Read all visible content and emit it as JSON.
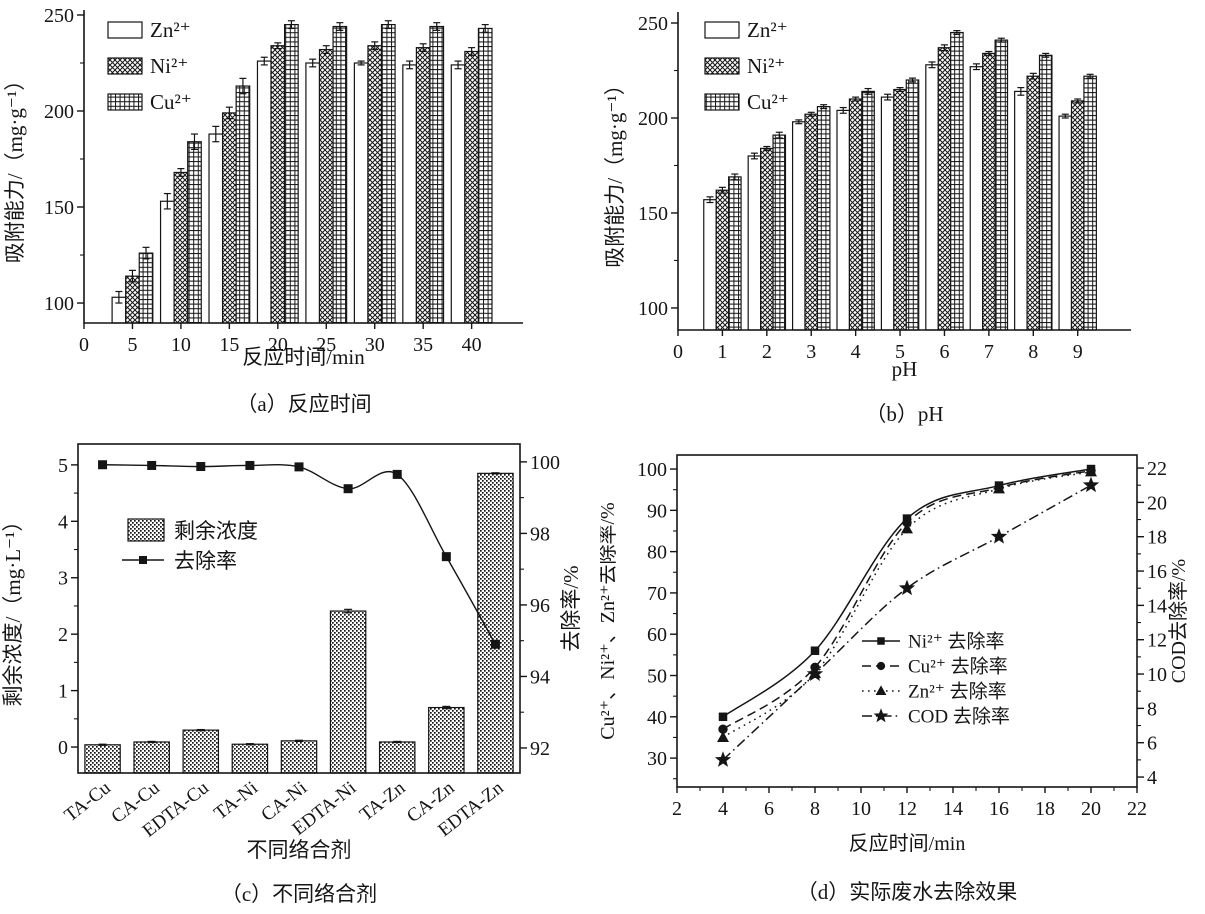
{
  "figure": {
    "background": "#ffffff",
    "ink": "#151515"
  },
  "chart_data": [
    {
      "id": "a",
      "type": "bar",
      "caption": "（a）反应时间",
      "xlabel": "反应时间/min",
      "ylabel": "吸附能力/（mg·g⁻¹）",
      "categories": [
        5,
        10,
        15,
        20,
        25,
        30,
        35,
        40
      ],
      "xlim": [
        0,
        45.3
      ],
      "xticks": [
        0,
        5,
        10,
        15,
        20,
        25,
        30,
        35,
        40
      ],
      "ylim": [
        89.6,
        252.6
      ],
      "yticks": [
        100,
        150,
        200,
        250
      ],
      "yminor": 25,
      "grid": false,
      "legend_position": "top-left",
      "series": [
        {
          "name": "Zn²⁺",
          "pattern": "plain",
          "values": [
            103,
            153,
            188,
            226,
            225,
            225,
            224,
            224
          ],
          "err": [
            3,
            4,
            4,
            2,
            2,
            1,
            2,
            2
          ]
        },
        {
          "name": "Ni²⁺",
          "pattern": "cross",
          "values": [
            114,
            168,
            199,
            234,
            232,
            234,
            233,
            231
          ],
          "err": [
            3,
            2,
            3,
            1.5,
            2,
            2,
            2,
            2
          ]
        },
        {
          "name": "Cu²⁺",
          "pattern": "grid",
          "values": [
            126,
            184,
            213,
            245,
            244,
            245,
            244,
            243
          ],
          "err": [
            3,
            4,
            4,
            2,
            2,
            2,
            2,
            2
          ]
        }
      ]
    },
    {
      "id": "b",
      "type": "bar",
      "caption": "（b）pH",
      "xlabel": "pH",
      "ylabel": "吸附能力/（mg·g⁻¹）",
      "categories": [
        1,
        2,
        3,
        4,
        5,
        6,
        7,
        8,
        9
      ],
      "xlim": [
        0,
        10.2
      ],
      "xticks": [
        0,
        1,
        2,
        3,
        4,
        5,
        6,
        7,
        8,
        9
      ],
      "ylim": [
        88.4,
        255.8
      ],
      "yticks": [
        100,
        150,
        200,
        250
      ],
      "yminor": 25,
      "grid": false,
      "legend_position": "top-left",
      "series": [
        {
          "name": "Zn²⁺",
          "pattern": "plain",
          "values": [
            157,
            180,
            198,
            204,
            211,
            228,
            227,
            214,
            201
          ],
          "err": [
            1.5,
            1.5,
            1,
            1.5,
            1.5,
            1.5,
            1.5,
            2,
            1
          ]
        },
        {
          "name": "Ni²⁺",
          "pattern": "cross",
          "values": [
            162,
            184,
            202,
            210,
            215,
            237,
            234,
            222,
            209
          ],
          "err": [
            1.5,
            1,
            1,
            1,
            1,
            1.5,
            1,
            1.5,
            1
          ]
        },
        {
          "name": "Cu²⁺",
          "pattern": "grid",
          "values": [
            169,
            191,
            206,
            214,
            220,
            245,
            241,
            233,
            222
          ],
          "err": [
            1.5,
            1.5,
            1,
            1.5,
            1,
            1,
            1,
            1,
            1
          ]
        }
      ]
    },
    {
      "id": "c",
      "type": "bar-line",
      "caption": "（c）不同络合剂",
      "xlabel": "不同络合剂",
      "ylabel_left": "剩余浓度/（mg·L⁻¹）",
      "ylabel_right": "去除率/%",
      "categories": [
        "TA-Cu",
        "CA-Cu",
        "EDTA-Cu",
        "TA-Ni",
        "CA-Ni",
        "EDTA-Ni",
        "TA-Zn",
        "CA-Zn",
        "EDTA-Zn"
      ],
      "ylim_left": [
        -0.46,
        5.37
      ],
      "yticks_left": [
        0,
        1,
        2,
        3,
        4,
        5
      ],
      "yminor_left": 0.5,
      "ylim_right": [
        91.3,
        100.5
      ],
      "yticks_right": [
        92,
        94,
        96,
        98,
        100
      ],
      "yminor_right": 1,
      "grid": false,
      "bar_series": {
        "name": "剩余浓度",
        "pattern": "stipple",
        "axis": "left",
        "values": [
          0.04,
          0.09,
          0.3,
          0.05,
          0.11,
          2.41,
          0.09,
          0.7,
          4.85
        ],
        "err": [
          0.01,
          0.01,
          0.01,
          0.01,
          0.01,
          0.03,
          0.01,
          0.02,
          0.01
        ]
      },
      "line_series": {
        "name": "去除率",
        "marker": "square",
        "dash": "solid",
        "axis": "right",
        "values": [
          99.92,
          99.9,
          99.87,
          99.9,
          99.86,
          99.25,
          99.65,
          97.35,
          94.9
        ]
      }
    },
    {
      "id": "d",
      "type": "line",
      "caption": "（d）实际废水去除效果",
      "xlabel": "反应时间/min",
      "ylabel_left": "Cu²⁺、Ni²⁺、Zn²⁺去除率/%",
      "ylabel_right": "COD去除率/%",
      "x": [
        4,
        8,
        12,
        16,
        20
      ],
      "xlim": [
        2,
        22
      ],
      "xticks": [
        2,
        4,
        6,
        8,
        10,
        12,
        14,
        16,
        18,
        20,
        22
      ],
      "xminor": 1,
      "ylim_left": [
        23,
        103.4
      ],
      "yticks_left": [
        30,
        40,
        50,
        60,
        70,
        80,
        90,
        100
      ],
      "yminor_left": 5,
      "ylim_right": [
        3.42,
        22.76
      ],
      "yticks_right": [
        4,
        6,
        8,
        10,
        12,
        14,
        16,
        18,
        20,
        22
      ],
      "yminor_right": 1,
      "grid": false,
      "legend_position": "middle-right",
      "series": [
        {
          "name": "Ni²⁺ 去除率",
          "axis": "left",
          "marker": "square",
          "dash": "solid",
          "values": [
            40,
            56,
            88,
            96,
            100
          ]
        },
        {
          "name": "Cu²⁺ 去除率",
          "axis": "left",
          "marker": "circle",
          "dash": "dash",
          "values": [
            37,
            52,
            87,
            95.5,
            99.6
          ]
        },
        {
          "name": "Zn²⁺ 去除率",
          "axis": "left",
          "marker": "triangle",
          "dash": "dot",
          "values": [
            35,
            50.5,
            85.5,
            95.2,
            99.3
          ]
        },
        {
          "name": "COD 去除率",
          "axis": "right",
          "marker": "star",
          "dash": "dashdot",
          "values": [
            5,
            10,
            15,
            18,
            21
          ]
        }
      ]
    }
  ]
}
